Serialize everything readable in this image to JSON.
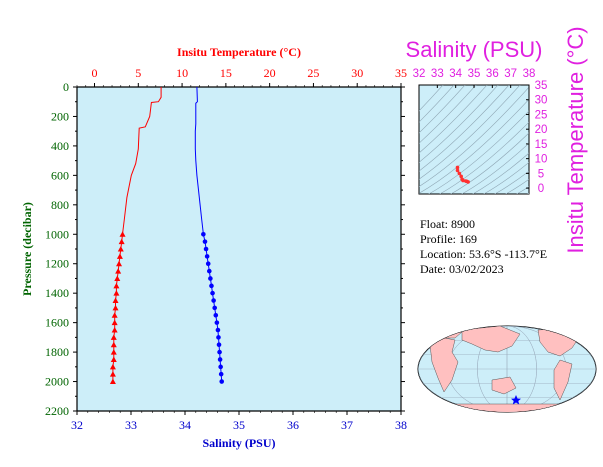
{
  "chart_data": [
    {
      "type": "line",
      "top_axis": {
        "label": "Insitu Temperature (°C)",
        "range": [
          -2,
          35
        ],
        "ticks": [
          0,
          5,
          10,
          15,
          20,
          25,
          30,
          35
        ],
        "color": "#ff0000"
      },
      "bottom_axis": {
        "label": "Salinity (PSU)",
        "range": [
          32,
          38
        ],
        "ticks": [
          32,
          33,
          34,
          35,
          36,
          37,
          38
        ],
        "color": "#0000cc"
      },
      "left_axis": {
        "label": "Pressure (decibar)",
        "range": [
          0,
          2200
        ],
        "ticks": [
          0,
          200,
          400,
          600,
          800,
          1000,
          1200,
          1400,
          1600,
          1800,
          2000,
          2200
        ],
        "inverted": true,
        "color": "#006400"
      },
      "background": "#cdeef9",
      "series": [
        {
          "kind": "temperature",
          "color": "#ff0000",
          "marker": "triangle",
          "points": [
            [
              7.6,
              0
            ],
            [
              7.6,
              70
            ],
            [
              7.3,
              100
            ],
            [
              6.5,
              105
            ],
            [
              6.3,
              200
            ],
            [
              5.8,
              270
            ],
            [
              5.1,
              280
            ],
            [
              5.0,
              420
            ],
            [
              4.7,
              520
            ],
            [
              4.2,
              600
            ],
            [
              3.7,
              750
            ],
            [
              3.4,
              900
            ],
            [
              3.2,
              1000
            ],
            [
              3.1,
              1050
            ],
            [
              3.0,
              1100
            ],
            [
              2.9,
              1150
            ],
            [
              2.8,
              1200
            ],
            [
              2.7,
              1250
            ],
            [
              2.6,
              1300
            ],
            [
              2.5,
              1350
            ],
            [
              2.5,
              1400
            ],
            [
              2.4,
              1450
            ],
            [
              2.4,
              1500
            ],
            [
              2.3,
              1550
            ],
            [
              2.3,
              1600
            ],
            [
              2.3,
              1650
            ],
            [
              2.2,
              1700
            ],
            [
              2.2,
              1750
            ],
            [
              2.2,
              1800
            ],
            [
              2.2,
              1850
            ],
            [
              2.1,
              1900
            ],
            [
              2.1,
              1950
            ],
            [
              2.1,
              2000
            ]
          ],
          "marker_from": 1000
        },
        {
          "kind": "salinity",
          "color": "#0000ff",
          "marker": "circle",
          "points": [
            [
              34.22,
              0
            ],
            [
              34.23,
              100
            ],
            [
              34.2,
              110
            ],
            [
              34.2,
              250
            ],
            [
              34.19,
              300
            ],
            [
              34.19,
              420
            ],
            [
              34.2,
              500
            ],
            [
              34.22,
              600
            ],
            [
              34.25,
              700
            ],
            [
              34.28,
              800
            ],
            [
              34.31,
              900
            ],
            [
              34.34,
              1000
            ],
            [
              34.37,
              1050
            ],
            [
              34.39,
              1100
            ],
            [
              34.41,
              1150
            ],
            [
              34.43,
              1200
            ],
            [
              34.45,
              1250
            ],
            [
              34.47,
              1300
            ],
            [
              34.49,
              1350
            ],
            [
              34.51,
              1400
            ],
            [
              34.53,
              1450
            ],
            [
              34.55,
              1500
            ],
            [
              34.57,
              1550
            ],
            [
              34.59,
              1600
            ],
            [
              34.61,
              1650
            ],
            [
              34.62,
              1700
            ],
            [
              34.63,
              1750
            ],
            [
              34.64,
              1800
            ],
            [
              34.65,
              1850
            ],
            [
              34.66,
              1900
            ],
            [
              34.67,
              1950
            ],
            [
              34.68,
              2000
            ]
          ],
          "marker_from": 1000
        }
      ]
    },
    {
      "type": "scatter",
      "title": "Salinity (PSU)",
      "x_ticks": [
        32,
        33,
        34,
        35,
        36,
        37,
        38
      ],
      "y_ticks": [
        0,
        5,
        10,
        15,
        20,
        25,
        30,
        35
      ],
      "y_label": "Insitu Temperature (°C)",
      "xlim": [
        32,
        38
      ],
      "ylim": [
        -2,
        35
      ],
      "label_color": "#e020e0",
      "points": [
        [
          34.1,
          7.0
        ],
        [
          34.1,
          6.0
        ],
        [
          34.2,
          5.0
        ],
        [
          34.3,
          4.0
        ],
        [
          34.35,
          3.0
        ],
        [
          34.4,
          2.6
        ],
        [
          34.55,
          2.4
        ],
        [
          34.6,
          2.3
        ],
        [
          34.68,
          2.1
        ]
      ],
      "background": "#cdeef9"
    }
  ],
  "float_info": {
    "float_line": "Float: 8900",
    "profile_line": "Profile: 169",
    "location_line": "Location: 53.6°S  -113.7°E",
    "date_line": "Date: 03/02/2023"
  },
  "map": {
    "land_color": "#ffc0c0",
    "ocean_color": "#cdeef9",
    "marker_color": "#0000ff"
  }
}
